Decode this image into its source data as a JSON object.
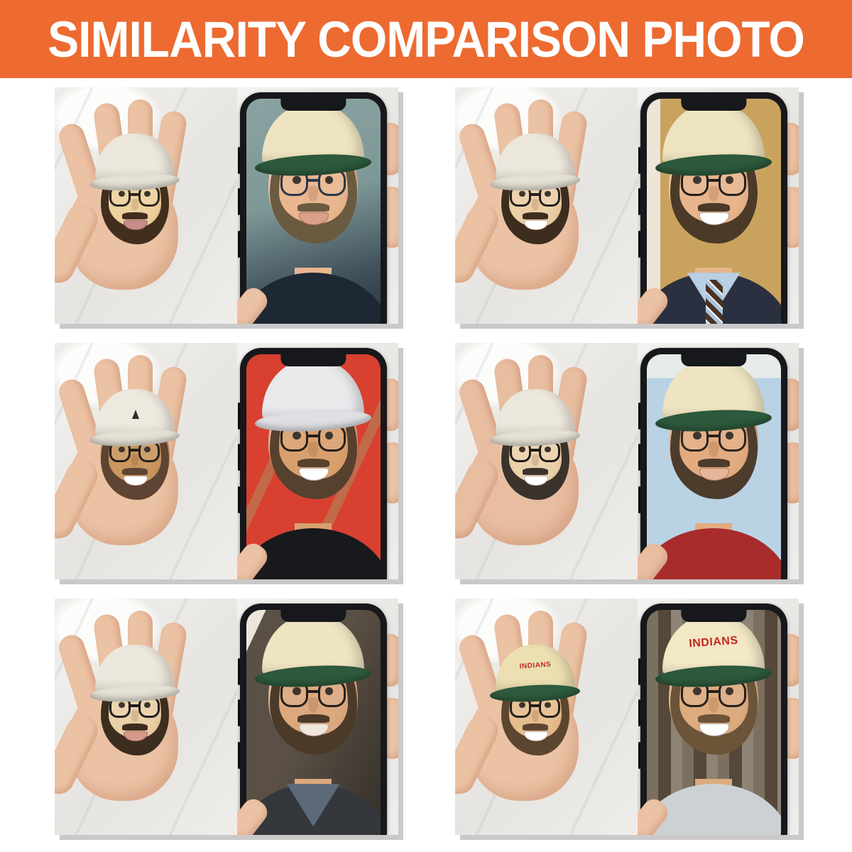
{
  "header": {
    "title": "SIMILARITY COMPARISON PHOTO",
    "bg_color": "#ED6A30",
    "text_color": "#FFFFFF"
  },
  "page": {
    "background": "#FFFFFF",
    "panel_shadow": "#C9C9C9"
  },
  "panels": [
    {
      "name": "top-left",
      "description": "Hand holding clay mini head of man with brown pompadour hair, round glasses and beard; phone photo of same man in dark tee, grey-teal room",
      "figurine_cap_text": "",
      "photo_cap_text": "",
      "flags": [
        "f-hair",
        "f-glasses",
        "f-beard",
        "f-stache",
        "p-hair",
        "p-glasses",
        "p-beard",
        "p-stache"
      ],
      "style": {
        "hand": "#ecc2a4",
        "fskin": "#eed29e",
        "fhair": "#46301f",
        "fbeard": "#422e1d",
        "fmouth": "#c98b8b",
        "fglass": "#2b2620",
        "screen": "linear-gradient(165deg,#8aa3a2 0%,#7e9897 42%,#41525c 74%,#232f3a 100%)",
        "pskin": "#e9b68f",
        "phair": "#7c7350",
        "pbeard": "#6a5a40",
        "pmouth": "#d9a08a",
        "pglass": "#27374a",
        "pshirt": "#1e2834"
      }
    },
    {
      "name": "top-right",
      "description": "Hand holding clay mini head of smiling silver-haired man; phone photo of same man in navy suit, light blue shirt and striped tie in office",
      "figurine_cap_text": "",
      "photo_cap_text": "",
      "flags": [
        "f-hair",
        "p-hair",
        "p-suit"
      ],
      "style": {
        "hand": "#ecc2a4",
        "fskin": "#eccfa6",
        "fhair": "#d6cfc2",
        "fbrow": "#6b4c33",
        "fmouth": "#ffffff",
        "screen": "linear-gradient(90deg,#ece5d8 0% 10%,#c9a35e 10% 100%)",
        "pskin": "#e7b48c",
        "phair": "#b9b3a9",
        "pbrow": "#7a6a58",
        "pmouth": "#ffffff",
        "pshirt": "#2b3040",
        "pcollar": "#b8cfe4",
        "ptie": "repeating-linear-gradient(45deg,#4a3226 0 7px,#a9c4db 7px 12px,#f2f2f2 12px 14px)"
      }
    },
    {
      "name": "middle-left",
      "description": "Hand holding clay mini head of smiling tan man in white baseball cap with small dark logo; phone photo of same man in white Polo cap and black tee under red canopy",
      "figurine_cap_text": "",
      "photo_cap_text": "",
      "flags": [
        "f-cap",
        "f-caplogo",
        "f-beard",
        "f-stache",
        "p-cap",
        "p-beard",
        "p-stache"
      ],
      "style": {
        "hand": "#ecc2a4",
        "fskin": "#c9975f",
        "fcap": "#eee9df",
        "fbrim": "#e6e1d5",
        "fbeard": "#5f4433",
        "fmouth": "#ffffff",
        "screen": "repeating-linear-gradient(115deg,#d84030 0 92px,#c06a4a 92px 106px)",
        "pskin": "#d9a06e",
        "pcap": "#e9e9ec",
        "pbrim": "#dfe0e4",
        "pbeard": "#55412e",
        "pmouth": "#ffffff",
        "pshirt": "#17191d"
      }
    },
    {
      "name": "middle-right",
      "description": "Hand holding clay mini head of man with short black hair, thin glasses and goatee; phone photo of same man in red tee against light blue wall",
      "figurine_cap_text": "",
      "photo_cap_text": "",
      "flags": [
        "f-hair",
        "f-glasses",
        "f-beard",
        "f-stache",
        "p-hair",
        "p-glasses",
        "p-beard",
        "p-stache"
      ],
      "style": {
        "hand": "#e9bda0",
        "fskin": "#ecd2ac",
        "fhair": "#2e2a26",
        "fbeard": "#3a332c",
        "fmouth": "#ffffff",
        "fglass": "#1d1b18",
        "screen": "linear-gradient(180deg,#e6ebe9 0% 10%,#b9d2e4 10% 100%)",
        "pskin": "#e2ab80",
        "phair": "#3b3129",
        "pbeard": "#4c3c2c",
        "pmouth": "#e8b49a",
        "pglass": "#2a2622",
        "pshirt": "#a82c2c"
      }
    },
    {
      "name": "bottom-left",
      "description": "Hand holding clay mini head of grey-haired man with black rectangular glasses; phone selfie of same man in dark jacket, warm indoor light",
      "figurine_cap_text": "",
      "photo_cap_text": "",
      "flags": [
        "f-hair",
        "f-glasses",
        "p-hair",
        "p-glasses",
        "p-collar"
      ],
      "style": {
        "hand": "#ecc2a4",
        "fskin": "#ead0a8",
        "fhair": "#8c8a7a",
        "fbrow": "#555046",
        "fmouth": "#d89a8a",
        "fglass": "#1e1e1e",
        "screen": "linear-gradient(115deg,#ece6da 0% 8%,#5a5045 8% 45%,#332e29 100%)",
        "pskin": "#dca87e",
        "phair": "#bb9e6e",
        "pbrow": "#8a7452",
        "pmouth": "#efe6dc",
        "pglass": "#21201e",
        "pshirt": "#34373c",
        "pcollar": "#5c6a78"
      }
    },
    {
      "name": "bottom-right",
      "description": "Hand holding clay mini head of smiling bearded man in cream INDIANS cap with green brim; phone photo of same man in same cap and light tee before rusty corrugated wall",
      "figurine_cap_text": "INDIANS",
      "photo_cap_text": "INDIANS",
      "flags": [
        "f-cap",
        "f-beard",
        "f-stache",
        "p-cap",
        "p-beard",
        "p-stache"
      ],
      "style": {
        "hand": "#ecc2a4",
        "fskin": "#e6bd8e",
        "fcap": "#ecdfb2",
        "fbrim": "#2f5c3e",
        "fcaptext": "#c5281e",
        "fbeard": "#5c4630",
        "fmouth": "#ffffff",
        "screen": "repeating-linear-gradient(90deg,#7b7060 0 16px,#55483a 16px 34px,#8d8476 34px 50px)",
        "pskin": "#dcab7e",
        "pcap": "#f2e8c6",
        "pbrim": "#2d5a3c",
        "pcaptext": "#c5271e",
        "pbeard": "#6b5438",
        "pmouth": "#ffffff",
        "pshirt": "#ccd2d4"
      }
    }
  ]
}
